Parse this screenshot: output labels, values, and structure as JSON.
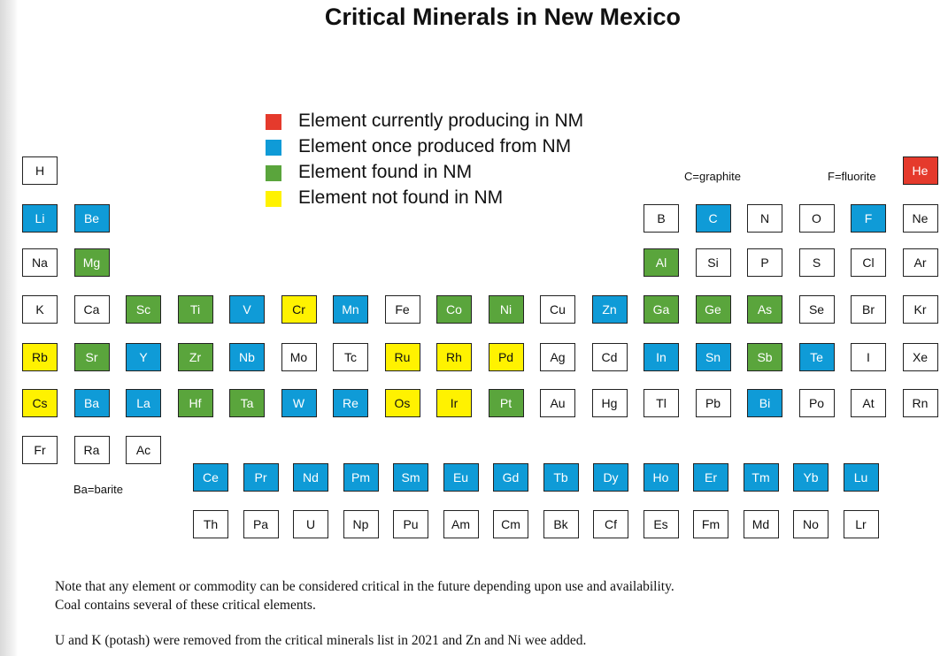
{
  "title": "Critical Minerals in New Mexico",
  "legend": [
    {
      "label": "Element currently producing in NM",
      "color": "#e53a2c"
    },
    {
      "label": "Element once produced from NM",
      "color": "#0f9bd7"
    },
    {
      "label": "Element found in NM",
      "color": "#5aa53c"
    },
    {
      "label": "Element not found in NM",
      "color": "#fff200"
    }
  ],
  "annotations": [
    "C=graphite",
    "F=fluorite",
    "Ba=barite"
  ],
  "table": {
    "rows": [
      [
        {
          "symbol": "H",
          "color": "#ffffff"
        },
        null,
        null,
        null,
        null,
        null,
        null,
        null,
        null,
        null,
        null,
        null,
        null,
        null,
        null,
        null,
        null,
        {
          "symbol": "He",
          "color": "#e53a2c"
        }
      ],
      [
        {
          "symbol": "Li",
          "color": "#0f9bd7"
        },
        {
          "symbol": "Be",
          "color": "#0f9bd7"
        },
        null,
        null,
        null,
        null,
        null,
        null,
        null,
        null,
        null,
        null,
        {
          "symbol": "B",
          "color": "#ffffff"
        },
        {
          "symbol": "C",
          "color": "#0f9bd7"
        },
        {
          "symbol": "N",
          "color": "#ffffff"
        },
        {
          "symbol": "O",
          "color": "#ffffff"
        },
        {
          "symbol": "F",
          "color": "#0f9bd7"
        },
        {
          "symbol": "Ne",
          "color": "#ffffff"
        }
      ],
      [
        {
          "symbol": "Na",
          "color": "#ffffff"
        },
        {
          "symbol": "Mg",
          "color": "#5aa53c"
        },
        null,
        null,
        null,
        null,
        null,
        null,
        null,
        null,
        null,
        null,
        {
          "symbol": "Al",
          "color": "#5aa53c"
        },
        {
          "symbol": "Si",
          "color": "#ffffff"
        },
        {
          "symbol": "P",
          "color": "#ffffff"
        },
        {
          "symbol": "S",
          "color": "#ffffff"
        },
        {
          "symbol": "Cl",
          "color": "#ffffff"
        },
        {
          "symbol": "Ar",
          "color": "#ffffff"
        }
      ],
      [
        {
          "symbol": "K",
          "color": "#ffffff"
        },
        {
          "symbol": "Ca",
          "color": "#ffffff"
        },
        {
          "symbol": "Sc",
          "color": "#5aa53c"
        },
        {
          "symbol": "Ti",
          "color": "#5aa53c"
        },
        {
          "symbol": "V",
          "color": "#0f9bd7"
        },
        {
          "symbol": "Cr",
          "color": "#fff200"
        },
        {
          "symbol": "Mn",
          "color": "#0f9bd7"
        },
        {
          "symbol": "Fe",
          "color": "#ffffff"
        },
        {
          "symbol": "Co",
          "color": "#5aa53c"
        },
        {
          "symbol": "Ni",
          "color": "#5aa53c"
        },
        {
          "symbol": "Cu",
          "color": "#ffffff"
        },
        {
          "symbol": "Zn",
          "color": "#0f9bd7"
        },
        {
          "symbol": "Ga",
          "color": "#5aa53c"
        },
        {
          "symbol": "Ge",
          "color": "#5aa53c"
        },
        {
          "symbol": "As",
          "color": "#5aa53c"
        },
        {
          "symbol": "Se",
          "color": "#ffffff"
        },
        {
          "symbol": "Br",
          "color": "#ffffff"
        },
        {
          "symbol": "Kr",
          "color": "#ffffff"
        }
      ],
      [
        {
          "symbol": "Rb",
          "color": "#fff200"
        },
        {
          "symbol": "Sr",
          "color": "#5aa53c"
        },
        {
          "symbol": "Y",
          "color": "#0f9bd7"
        },
        {
          "symbol": "Zr",
          "color": "#5aa53c"
        },
        {
          "symbol": "Nb",
          "color": "#0f9bd7"
        },
        {
          "symbol": "Mo",
          "color": "#ffffff"
        },
        {
          "symbol": "Tc",
          "color": "#ffffff"
        },
        {
          "symbol": "Ru",
          "color": "#fff200"
        },
        {
          "symbol": "Rh",
          "color": "#fff200"
        },
        {
          "symbol": "Pd",
          "color": "#fff200"
        },
        {
          "symbol": "Ag",
          "color": "#ffffff"
        },
        {
          "symbol": "Cd",
          "color": "#ffffff"
        },
        {
          "symbol": "In",
          "color": "#0f9bd7"
        },
        {
          "symbol": "Sn",
          "color": "#0f9bd7"
        },
        {
          "symbol": "Sb",
          "color": "#5aa53c"
        },
        {
          "symbol": "Te",
          "color": "#0f9bd7"
        },
        {
          "symbol": "I",
          "color": "#ffffff"
        },
        {
          "symbol": "Xe",
          "color": "#ffffff"
        }
      ],
      [
        {
          "symbol": "Cs",
          "color": "#fff200"
        },
        {
          "symbol": "Ba",
          "color": "#0f9bd7"
        },
        {
          "symbol": "La",
          "color": "#0f9bd7"
        },
        {
          "symbol": "Hf",
          "color": "#5aa53c"
        },
        {
          "symbol": "Ta",
          "color": "#5aa53c"
        },
        {
          "symbol": "W",
          "color": "#0f9bd7"
        },
        {
          "symbol": "Re",
          "color": "#0f9bd7"
        },
        {
          "symbol": "Os",
          "color": "#fff200"
        },
        {
          "symbol": "Ir",
          "color": "#fff200"
        },
        {
          "symbol": "Pt",
          "color": "#5aa53c"
        },
        {
          "symbol": "Au",
          "color": "#ffffff"
        },
        {
          "symbol": "Hg",
          "color": "#ffffff"
        },
        {
          "symbol": "Tl",
          "color": "#ffffff"
        },
        {
          "symbol": "Pb",
          "color": "#ffffff"
        },
        {
          "symbol": "Bi",
          "color": "#0f9bd7"
        },
        {
          "symbol": "Po",
          "color": "#ffffff"
        },
        {
          "symbol": "At",
          "color": "#ffffff"
        },
        {
          "symbol": "Rn",
          "color": "#ffffff"
        }
      ],
      [
        {
          "symbol": "Fr",
          "color": "#ffffff"
        },
        {
          "symbol": "Ra",
          "color": "#ffffff"
        },
        {
          "symbol": "Ac",
          "color": "#ffffff"
        }
      ]
    ],
    "lanthanides": [
      {
        "symbol": "Ce",
        "color": "#0f9bd7"
      },
      {
        "symbol": "Pr",
        "color": "#0f9bd7"
      },
      {
        "symbol": "Nd",
        "color": "#0f9bd7"
      },
      {
        "symbol": "Pm",
        "color": "#0f9bd7"
      },
      {
        "symbol": "Sm",
        "color": "#0f9bd7"
      },
      {
        "symbol": "Eu",
        "color": "#0f9bd7"
      },
      {
        "symbol": "Gd",
        "color": "#0f9bd7"
      },
      {
        "symbol": "Tb",
        "color": "#0f9bd7"
      },
      {
        "symbol": "Dy",
        "color": "#0f9bd7"
      },
      {
        "symbol": "Ho",
        "color": "#0f9bd7"
      },
      {
        "symbol": "Er",
        "color": "#0f9bd7"
      },
      {
        "symbol": "Tm",
        "color": "#0f9bd7"
      },
      {
        "symbol": "Yb",
        "color": "#0f9bd7"
      },
      {
        "symbol": "Lu",
        "color": "#0f9bd7"
      }
    ],
    "actinides": [
      {
        "symbol": "Th",
        "color": "#ffffff"
      },
      {
        "symbol": "Pa",
        "color": "#ffffff"
      },
      {
        "symbol": "U",
        "color": "#ffffff"
      },
      {
        "symbol": "Np",
        "color": "#ffffff"
      },
      {
        "symbol": "Pu",
        "color": "#ffffff"
      },
      {
        "symbol": "Am",
        "color": "#ffffff"
      },
      {
        "symbol": "Cm",
        "color": "#ffffff"
      },
      {
        "symbol": "Bk",
        "color": "#ffffff"
      },
      {
        "symbol": "Cf",
        "color": "#ffffff"
      },
      {
        "symbol": "Es",
        "color": "#ffffff"
      },
      {
        "symbol": "Fm",
        "color": "#ffffff"
      },
      {
        "symbol": "Md",
        "color": "#ffffff"
      },
      {
        "symbol": "No",
        "color": "#ffffff"
      },
      {
        "symbol": "Lr",
        "color": "#ffffff"
      }
    ]
  },
  "notes": [
    "Note that any element or commodity can be considered critical in the future depending upon use and availability.",
    "Coal contains several of these critical elements.",
    "U and K (potash) were removed from the critical minerals list in 2021 and Zn and Ni wee added."
  ]
}
